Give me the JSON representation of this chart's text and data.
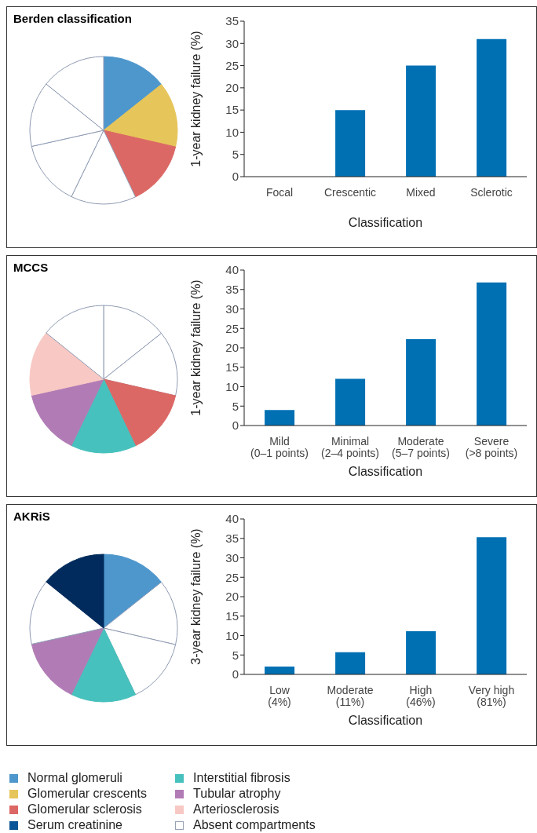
{
  "chart_data": [
    {
      "type": "pie",
      "title": "Berden classification",
      "categories": [
        null,
        null,
        null,
        null,
        null,
        null,
        null
      ],
      "values": [
        14.3,
        14.3,
        14.3,
        14.3,
        14.3,
        14.3,
        14.2
      ],
      "colors": [
        "#4e97cd",
        "#e6c55a",
        "#dc6865",
        "#ffffff",
        "#ffffff",
        "#ffffff",
        "#ffffff"
      ]
    },
    {
      "type": "bar",
      "categories": [
        "Focal",
        "Crescentic",
        "Mixed",
        "Sclerotic"
      ],
      "values": [
        0,
        15,
        25,
        31
      ],
      "color": "#0070b3",
      "xlabel": "Classification",
      "ylabel": "1-year kidney failure (%)",
      "ylim": [
        0,
        35
      ],
      "yticks": [
        0,
        5,
        10,
        15,
        20,
        25,
        30,
        35
      ]
    },
    {
      "type": "pie",
      "title": "MCCS",
      "categories": [
        null,
        null,
        null,
        null,
        null,
        null,
        null
      ],
      "values": [
        14.3,
        14.3,
        14.3,
        14.3,
        14.3,
        14.3,
        14.2
      ],
      "colors": [
        "#ffffff",
        "#ffffff",
        "#dc6865",
        "#47c1bd",
        "#b17cb5",
        "#f8c9c4",
        "#ffffff"
      ]
    },
    {
      "type": "bar",
      "categories": [
        "Mild\n(0–1 points)",
        "Minimal\n(2–4 points)",
        "Moderate\n(5–7 points)",
        "Severe\n(>8 points)"
      ],
      "values": [
        4,
        12,
        22.2,
        36.8
      ],
      "color": "#0070b3",
      "xlabel": "Classification",
      "ylabel": "1-year kidney failure  (%)",
      "ylim": [
        0,
        40
      ],
      "yticks": [
        0,
        5,
        10,
        15,
        20,
        25,
        30,
        35,
        40
      ]
    },
    {
      "type": "pie",
      "title": "AKRiS",
      "categories": [
        null,
        null,
        null,
        null,
        null,
        null,
        null
      ],
      "values": [
        14.3,
        14.3,
        14.3,
        14.3,
        14.3,
        14.3,
        14.2
      ],
      "colors": [
        "#4e97cd",
        "#ffffff",
        "#ffffff",
        "#47c1bd",
        "#b17cb5",
        "#ffffff",
        "#002b5c"
      ]
    },
    {
      "type": "bar",
      "categories": [
        "Low\n(4%)",
        "Moderate\n(11%)",
        "High\n(46%)",
        "Very high\n(81%)"
      ],
      "values": [
        2,
        5.7,
        11.1,
        35.3
      ],
      "color": "#0070b3",
      "xlabel": "Classification",
      "ylabel": "3-year kidney failure (%)",
      "ylim": [
        0,
        40
      ],
      "yticks": [
        0,
        5,
        10,
        15,
        20,
        25,
        30,
        35,
        40
      ]
    },
    {
      "type": "other",
      "categories": [
        "Normal glomeruli",
        "Glomerular crescents",
        "Glomerular sclerosis",
        "Serum creatinine",
        "Interstitial fibrosis",
        "Tubular atrophy",
        "Arteriosclerosis",
        "Absent compartments"
      ],
      "colors": [
        "#4e97cd",
        "#e6c55a",
        "#dc6865",
        "#0a5597",
        "#47c1bd",
        "#b17cb5",
        "#f8c9c4",
        "#ffffff"
      ]
    }
  ]
}
